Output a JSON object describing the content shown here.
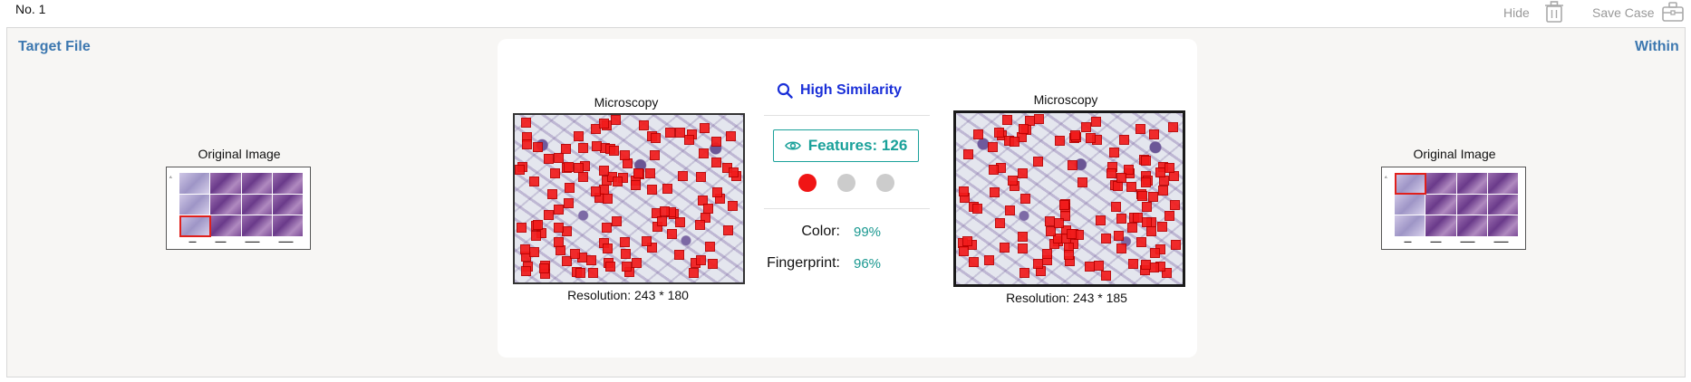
{
  "header": {
    "case_no": "No. 1",
    "hide_label": "Hide",
    "save_label": "Save Case"
  },
  "panel": {
    "left_title": "Target File",
    "right_title": "Within",
    "left_original_caption": "Original Image",
    "right_original_caption": "Original Image"
  },
  "comparison": {
    "left": {
      "title": "Microscopy",
      "resolution": "Resolution: 243 * 180"
    },
    "right": {
      "title": "Microscopy",
      "resolution": "Resolution: 243 * 185"
    },
    "similarity_label": "High Similarity",
    "features_label": "Features: 126",
    "indicators": [
      {
        "state": "active",
        "color": "#f01515"
      },
      {
        "state": "inactive",
        "color": "#cccccc"
      },
      {
        "state": "inactive",
        "color": "#cccccc"
      }
    ],
    "metrics": [
      {
        "label": "Color:",
        "value": "99%"
      },
      {
        "label": "Fingerprint:",
        "value": "96%"
      }
    ]
  },
  "colors": {
    "accent_blue": "#3d78b0",
    "similarity_blue": "#1a2fd8",
    "teal": "#1aa19a",
    "keypoint_red": "#f21b1b"
  }
}
